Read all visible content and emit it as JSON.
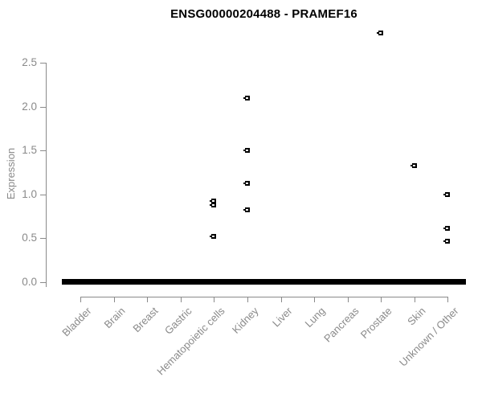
{
  "chart_data": {
    "type": "scatter",
    "title": "ENSG00000204488 - PRAMEF16",
    "xlabel": "",
    "ylabel": "Expression",
    "ylim": [
      0.0,
      2.5
    ],
    "yticks": [
      "0.0",
      "0.5",
      "1.0",
      "1.5",
      "2.0",
      "2.5"
    ],
    "grid": false,
    "legend": false,
    "marker": "small-black-open-square",
    "colors": {
      "points": "#000000",
      "axis": "#8a8a8a",
      "title": "#000000",
      "background": "#ffffff"
    },
    "categories": [
      "Bladder",
      "Brain",
      "Breast",
      "Gastric",
      "Hematopoietic cells",
      "Kidney",
      "Liver",
      "Lung",
      "Pancreas",
      "Prostate",
      "Skin",
      "Unknown / Other"
    ],
    "series": [
      {
        "category": "Bladder",
        "zero_cluster": true,
        "points": []
      },
      {
        "category": "Brain",
        "zero_cluster": true,
        "points": []
      },
      {
        "category": "Breast",
        "zero_cluster": true,
        "points": []
      },
      {
        "category": "Gastric",
        "zero_cluster": true,
        "points": []
      },
      {
        "category": "Hematopoietic cells",
        "zero_cluster": true,
        "points": [
          0.52,
          0.88,
          0.92
        ]
      },
      {
        "category": "Kidney",
        "zero_cluster": true,
        "points": [
          0.82,
          1.12,
          1.5,
          2.1
        ]
      },
      {
        "category": "Liver",
        "zero_cluster": true,
        "points": []
      },
      {
        "category": "Lung",
        "zero_cluster": true,
        "points": []
      },
      {
        "category": "Pancreas",
        "zero_cluster": true,
        "points": []
      },
      {
        "category": "Prostate",
        "zero_cluster": true,
        "points": [
          2.84
        ]
      },
      {
        "category": "Skin",
        "zero_cluster": true,
        "points": [
          1.33
        ]
      },
      {
        "category": "Unknown / Other",
        "zero_cluster": true,
        "points": [
          0.46,
          0.61,
          1.0
        ]
      }
    ],
    "zero_cluster_value": 0.0
  }
}
